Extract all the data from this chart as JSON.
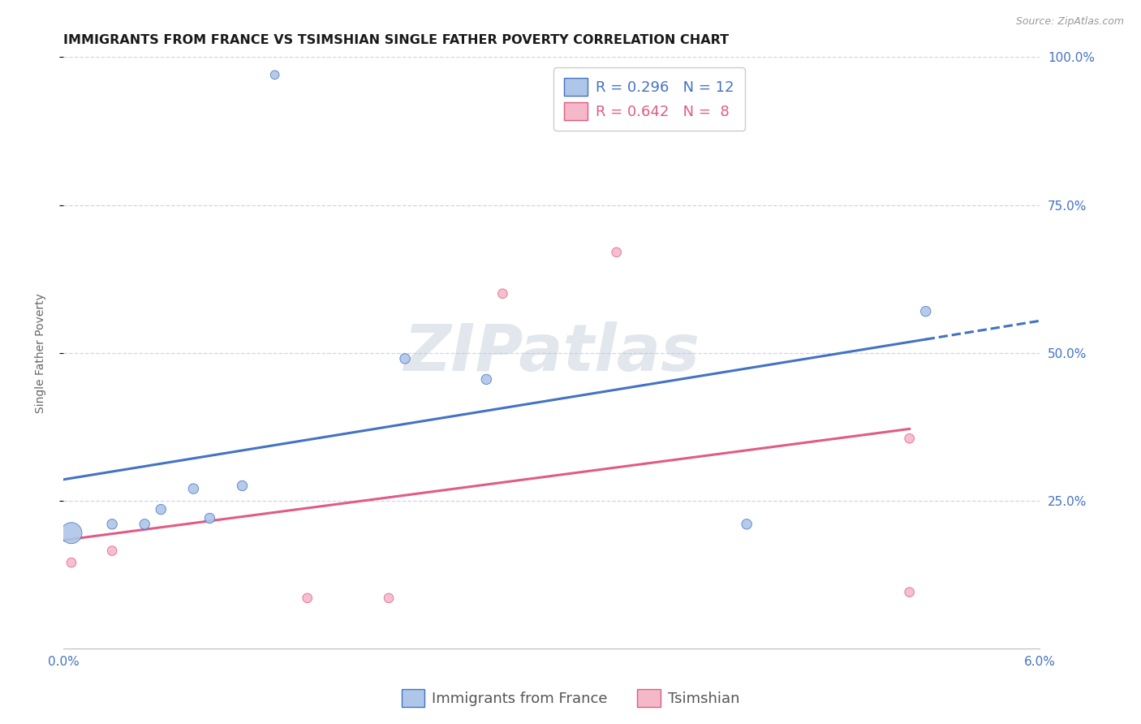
{
  "title": "IMMIGRANTS FROM FRANCE VS TSIMSHIAN SINGLE FATHER POVERTY CORRELATION CHART",
  "source": "Source: ZipAtlas.com",
  "ylabel": "Single Father Poverty",
  "xlim": [
    0.0,
    0.06
  ],
  "ylim": [
    0.0,
    1.0
  ],
  "ytick_vals": [
    1.0,
    0.75,
    0.5,
    0.25
  ],
  "blue_points_x": [
    0.0005,
    0.003,
    0.005,
    0.006,
    0.008,
    0.009,
    0.011,
    0.013,
    0.021,
    0.026,
    0.042,
    0.053
  ],
  "blue_points_y": [
    0.195,
    0.21,
    0.21,
    0.235,
    0.27,
    0.22,
    0.275,
    0.97,
    0.49,
    0.455,
    0.21,
    0.57
  ],
  "blue_sizes": [
    350,
    80,
    80,
    80,
    80,
    80,
    80,
    60,
    80,
    80,
    80,
    80
  ],
  "pink_points_x": [
    0.0005,
    0.003,
    0.015,
    0.02,
    0.027,
    0.034,
    0.052,
    0.052
  ],
  "pink_points_y": [
    0.145,
    0.165,
    0.085,
    0.085,
    0.6,
    0.67,
    0.355,
    0.095
  ],
  "pink_sizes": [
    70,
    70,
    70,
    70,
    70,
    70,
    70,
    70
  ],
  "blue_R": 0.296,
  "blue_N": 12,
  "pink_R": 0.642,
  "pink_N": 8,
  "blue_color": "#aec6e8",
  "blue_line_color": "#4472c4",
  "pink_color": "#f4b8c8",
  "pink_line_color": "#e05c85",
  "legend_label_blue": "Immigrants from France",
  "legend_label_pink": "Tsimshian",
  "watermark_text": "ZIPatlas",
  "background_color": "#ffffff",
  "grid_color": "#ccd6e8",
  "title_fontsize": 11.5,
  "axis_label_fontsize": 10,
  "tick_fontsize": 11,
  "legend_fontsize": 13
}
